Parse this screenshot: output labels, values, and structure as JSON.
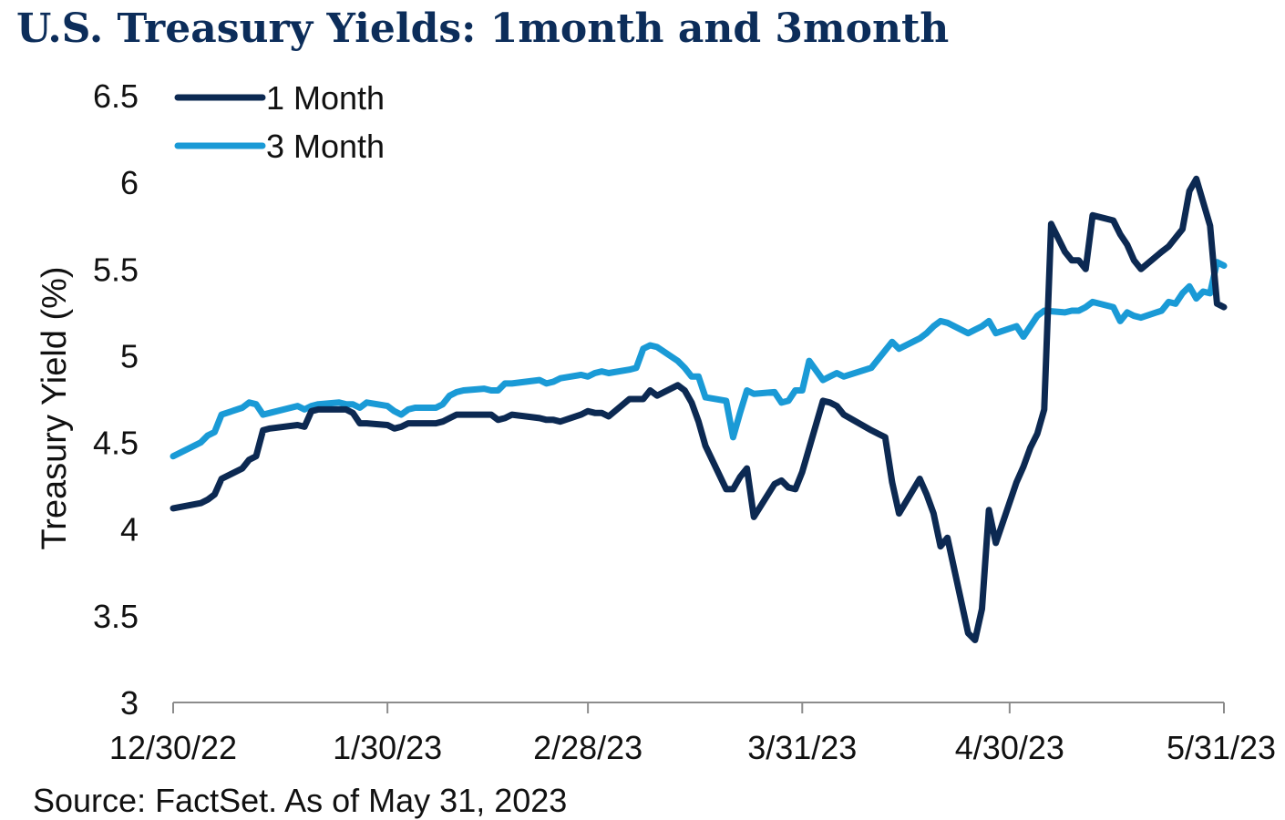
{
  "header": {
    "title": "U.S. Treasury Yields: 1month and 3month"
  },
  "footer": {
    "source": "Source: FactSet. As of May 31, 2023"
  },
  "chart_data": {
    "type": "line",
    "title": "U.S. Treasury Yields: 1month and 3month",
    "xlabel": "",
    "ylabel": "Treasury Yield (%)",
    "ylim": [
      3,
      6.5
    ],
    "yticks": [
      3,
      3.5,
      4,
      4.5,
      5,
      5.5,
      6,
      6.5
    ],
    "ytick_labels": [
      "3",
      "3.5",
      "4",
      "4.5",
      "5",
      "5.5",
      "6",
      "6.5"
    ],
    "xlim": [
      "2022-12-30",
      "2023-05-31"
    ],
    "xticks": [
      "2022-12-30",
      "2023-01-30",
      "2023-02-28",
      "2023-03-31",
      "2023-04-30",
      "2023-05-31"
    ],
    "xtick_labels": [
      "12/30/22",
      "1/30/23",
      "2/28/23",
      "3/31/23",
      "4/30/23",
      "5/31/23"
    ],
    "grid": false,
    "legend_position": "top-left",
    "series": [
      {
        "name": "1 Month",
        "color": "#0c2952",
        "points": [
          [
            "2022-12-30",
            4.12
          ],
          [
            "2023-01-03",
            4.15
          ],
          [
            "2023-01-04",
            4.17
          ],
          [
            "2023-01-05",
            4.2
          ],
          [
            "2023-01-06",
            4.29
          ],
          [
            "2023-01-09",
            4.35
          ],
          [
            "2023-01-10",
            4.4
          ],
          [
            "2023-01-11",
            4.42
          ],
          [
            "2023-01-12",
            4.57
          ],
          [
            "2023-01-13",
            4.58
          ],
          [
            "2023-01-17",
            4.6
          ],
          [
            "2023-01-18",
            4.59
          ],
          [
            "2023-01-19",
            4.68
          ],
          [
            "2023-01-20",
            4.69
          ],
          [
            "2023-01-23",
            4.69
          ],
          [
            "2023-01-24",
            4.69
          ],
          [
            "2023-01-25",
            4.67
          ],
          [
            "2023-01-26",
            4.61
          ],
          [
            "2023-01-27",
            4.61
          ],
          [
            "2023-01-30",
            4.6
          ],
          [
            "2023-01-31",
            4.58
          ],
          [
            "2023-02-01",
            4.59
          ],
          [
            "2023-02-02",
            4.61
          ],
          [
            "2023-02-03",
            4.61
          ],
          [
            "2023-02-06",
            4.61
          ],
          [
            "2023-02-07",
            4.62
          ],
          [
            "2023-02-08",
            4.64
          ],
          [
            "2023-02-09",
            4.66
          ],
          [
            "2023-02-10",
            4.66
          ],
          [
            "2023-02-13",
            4.66
          ],
          [
            "2023-02-14",
            4.66
          ],
          [
            "2023-02-15",
            4.63
          ],
          [
            "2023-02-16",
            4.64
          ],
          [
            "2023-02-17",
            4.66
          ],
          [
            "2023-02-21",
            4.64
          ],
          [
            "2023-02-22",
            4.63
          ],
          [
            "2023-02-23",
            4.63
          ],
          [
            "2023-02-24",
            4.62
          ],
          [
            "2023-02-27",
            4.66
          ],
          [
            "2023-02-28",
            4.68
          ],
          [
            "2023-03-01",
            4.67
          ],
          [
            "2023-03-02",
            4.67
          ],
          [
            "2023-03-03",
            4.65
          ],
          [
            "2023-03-06",
            4.75
          ],
          [
            "2023-03-07",
            4.75
          ],
          [
            "2023-03-08",
            4.75
          ],
          [
            "2023-03-09",
            4.8
          ],
          [
            "2023-03-10",
            4.77
          ],
          [
            "2023-03-13",
            4.83
          ],
          [
            "2023-03-14",
            4.8
          ],
          [
            "2023-03-15",
            4.73
          ],
          [
            "2023-03-16",
            4.62
          ],
          [
            "2023-03-17",
            4.48
          ],
          [
            "2023-03-20",
            4.23
          ],
          [
            "2023-03-21",
            4.23
          ],
          [
            "2023-03-22",
            4.3
          ],
          [
            "2023-03-23",
            4.35
          ],
          [
            "2023-03-24",
            4.07
          ],
          [
            "2023-03-27",
            4.26
          ],
          [
            "2023-03-28",
            4.28
          ],
          [
            "2023-03-29",
            4.24
          ],
          [
            "2023-03-30",
            4.23
          ],
          [
            "2023-03-31",
            4.33
          ],
          [
            "2023-04-03",
            4.74
          ],
          [
            "2023-04-04",
            4.73
          ],
          [
            "2023-04-05",
            4.71
          ],
          [
            "2023-04-06",
            4.66
          ],
          [
            "2023-04-10",
            4.57
          ],
          [
            "2023-04-11",
            4.55
          ],
          [
            "2023-04-12",
            4.53
          ],
          [
            "2023-04-13",
            4.27
          ],
          [
            "2023-04-14",
            4.09
          ],
          [
            "2023-04-17",
            4.29
          ],
          [
            "2023-04-18",
            4.2
          ],
          [
            "2023-04-19",
            4.09
          ],
          [
            "2023-04-20",
            3.9
          ],
          [
            "2023-04-21",
            3.95
          ],
          [
            "2023-04-24",
            3.4
          ],
          [
            "2023-04-25",
            3.36
          ],
          [
            "2023-04-26",
            3.54
          ],
          [
            "2023-04-27",
            4.11
          ],
          [
            "2023-04-28",
            3.92
          ],
          [
            "2023-05-01",
            4.27
          ],
          [
            "2023-05-02",
            4.36
          ],
          [
            "2023-05-03",
            4.47
          ],
          [
            "2023-05-04",
            4.55
          ],
          [
            "2023-05-05",
            4.69
          ],
          [
            "2023-05-06",
            5.76
          ],
          [
            "2023-05-08",
            5.6
          ],
          [
            "2023-05-09",
            5.55
          ],
          [
            "2023-05-10",
            5.55
          ],
          [
            "2023-05-11",
            5.5
          ],
          [
            "2023-05-12",
            5.81
          ],
          [
            "2023-05-15",
            5.78
          ],
          [
            "2023-05-16",
            5.7
          ],
          [
            "2023-05-17",
            5.64
          ],
          [
            "2023-05-18",
            5.55
          ],
          [
            "2023-05-19",
            5.5
          ],
          [
            "2023-05-22",
            5.6
          ],
          [
            "2023-05-23",
            5.63
          ],
          [
            "2023-05-24",
            5.68
          ],
          [
            "2023-05-25",
            5.73
          ],
          [
            "2023-05-26",
            5.95
          ],
          [
            "2023-05-27",
            6.02
          ],
          [
            "2023-05-29",
            5.75
          ],
          [
            "2023-05-30",
            5.3
          ],
          [
            "2023-05-31",
            5.28
          ]
        ]
      },
      {
        "name": "3 Month",
        "color": "#1a9ad6",
        "points": [
          [
            "2022-12-30",
            4.42
          ],
          [
            "2023-01-03",
            4.5
          ],
          [
            "2023-01-04",
            4.54
          ],
          [
            "2023-01-05",
            4.56
          ],
          [
            "2023-01-06",
            4.66
          ],
          [
            "2023-01-09",
            4.7
          ],
          [
            "2023-01-10",
            4.73
          ],
          [
            "2023-01-11",
            4.72
          ],
          [
            "2023-01-12",
            4.66
          ],
          [
            "2023-01-13",
            4.67
          ],
          [
            "2023-01-17",
            4.71
          ],
          [
            "2023-01-18",
            4.69
          ],
          [
            "2023-01-19",
            4.71
          ],
          [
            "2023-01-20",
            4.72
          ],
          [
            "2023-01-23",
            4.73
          ],
          [
            "2023-01-24",
            4.72
          ],
          [
            "2023-01-25",
            4.72
          ],
          [
            "2023-01-26",
            4.7
          ],
          [
            "2023-01-27",
            4.73
          ],
          [
            "2023-01-30",
            4.71
          ],
          [
            "2023-01-31",
            4.68
          ],
          [
            "2023-02-01",
            4.66
          ],
          [
            "2023-02-02",
            4.69
          ],
          [
            "2023-02-03",
            4.7
          ],
          [
            "2023-02-06",
            4.7
          ],
          [
            "2023-02-07",
            4.72
          ],
          [
            "2023-02-08",
            4.77
          ],
          [
            "2023-02-09",
            4.79
          ],
          [
            "2023-02-10",
            4.8
          ],
          [
            "2023-02-13",
            4.81
          ],
          [
            "2023-02-14",
            4.8
          ],
          [
            "2023-02-15",
            4.8
          ],
          [
            "2023-02-16",
            4.84
          ],
          [
            "2023-02-17",
            4.84
          ],
          [
            "2023-02-21",
            4.86
          ],
          [
            "2023-02-22",
            4.84
          ],
          [
            "2023-02-23",
            4.85
          ],
          [
            "2023-02-24",
            4.87
          ],
          [
            "2023-02-27",
            4.89
          ],
          [
            "2023-02-28",
            4.88
          ],
          [
            "2023-03-01",
            4.9
          ],
          [
            "2023-03-02",
            4.91
          ],
          [
            "2023-03-03",
            4.9
          ],
          [
            "2023-03-06",
            4.92
          ],
          [
            "2023-03-07",
            4.93
          ],
          [
            "2023-03-08",
            5.04
          ],
          [
            "2023-03-09",
            5.06
          ],
          [
            "2023-03-10",
            5.05
          ],
          [
            "2023-03-13",
            4.97
          ],
          [
            "2023-03-14",
            4.93
          ],
          [
            "2023-03-15",
            4.88
          ],
          [
            "2023-03-16",
            4.88
          ],
          [
            "2023-03-17",
            4.76
          ],
          [
            "2023-03-20",
            4.74
          ],
          [
            "2023-03-21",
            4.53
          ],
          [
            "2023-03-22",
            4.67
          ],
          [
            "2023-03-23",
            4.8
          ],
          [
            "2023-03-24",
            4.78
          ],
          [
            "2023-03-27",
            4.79
          ],
          [
            "2023-03-28",
            4.73
          ],
          [
            "2023-03-29",
            4.74
          ],
          [
            "2023-03-30",
            4.8
          ],
          [
            "2023-03-31",
            4.8
          ],
          [
            "2023-04-01",
            4.97
          ],
          [
            "2023-04-03",
            4.86
          ],
          [
            "2023-04-04",
            4.88
          ],
          [
            "2023-04-05",
            4.9
          ],
          [
            "2023-04-06",
            4.88
          ],
          [
            "2023-04-10",
            4.93
          ],
          [
            "2023-04-11",
            4.98
          ],
          [
            "2023-04-12",
            5.03
          ],
          [
            "2023-04-13",
            5.08
          ],
          [
            "2023-04-14",
            5.04
          ],
          [
            "2023-04-17",
            5.1
          ],
          [
            "2023-04-18",
            5.13
          ],
          [
            "2023-04-19",
            5.17
          ],
          [
            "2023-04-20",
            5.2
          ],
          [
            "2023-04-21",
            5.19
          ],
          [
            "2023-04-24",
            5.13
          ],
          [
            "2023-04-25",
            5.15
          ],
          [
            "2023-04-26",
            5.17
          ],
          [
            "2023-04-27",
            5.2
          ],
          [
            "2023-04-28",
            5.13
          ],
          [
            "2023-05-01",
            5.17
          ],
          [
            "2023-05-02",
            5.11
          ],
          [
            "2023-05-03",
            5.17
          ],
          [
            "2023-05-04",
            5.23
          ],
          [
            "2023-05-05",
            5.26
          ],
          [
            "2023-05-08",
            5.25
          ],
          [
            "2023-05-09",
            5.26
          ],
          [
            "2023-05-10",
            5.26
          ],
          [
            "2023-05-11",
            5.28
          ],
          [
            "2023-05-12",
            5.31
          ],
          [
            "2023-05-15",
            5.28
          ],
          [
            "2023-05-16",
            5.2
          ],
          [
            "2023-05-17",
            5.25
          ],
          [
            "2023-05-18",
            5.23
          ],
          [
            "2023-05-19",
            5.22
          ],
          [
            "2023-05-22",
            5.26
          ],
          [
            "2023-05-23",
            5.31
          ],
          [
            "2023-05-24",
            5.3
          ],
          [
            "2023-05-25",
            5.36
          ],
          [
            "2023-05-26",
            5.4
          ],
          [
            "2023-05-27",
            5.33
          ],
          [
            "2023-05-28",
            5.37
          ],
          [
            "2023-05-29",
            5.36
          ],
          [
            "2023-05-30",
            5.54
          ],
          [
            "2023-05-31",
            5.52
          ]
        ]
      }
    ]
  }
}
